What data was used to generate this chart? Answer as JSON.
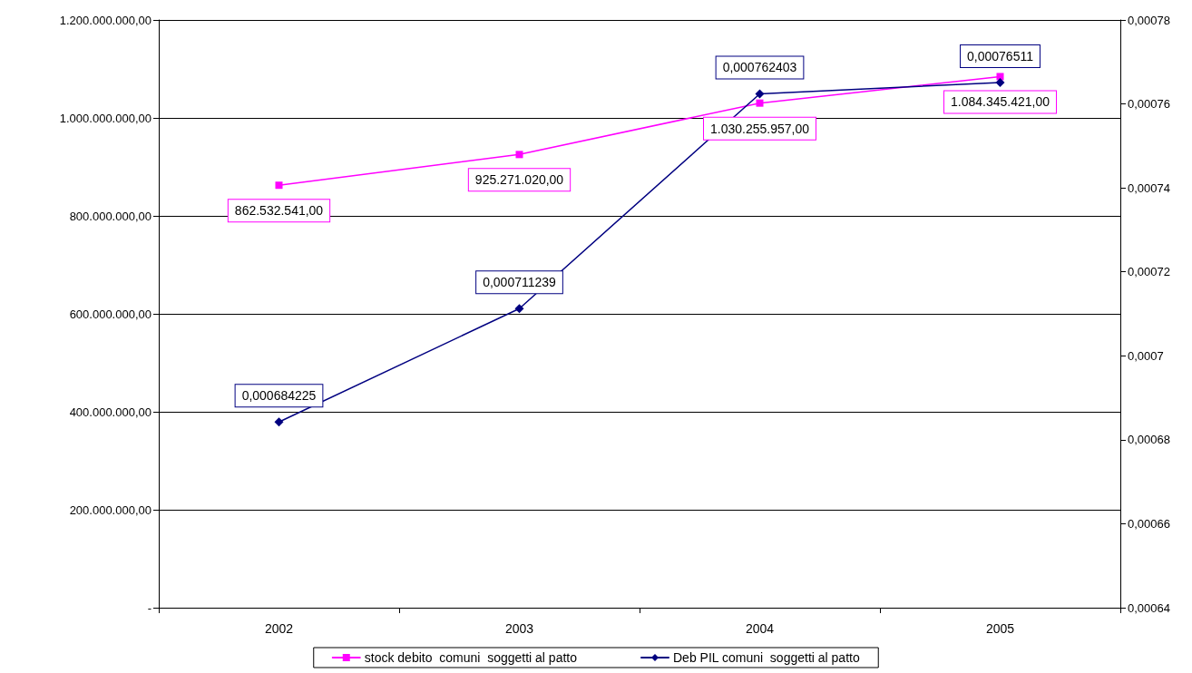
{
  "chart_data": {
    "type": "line",
    "categories": [
      "2002",
      "2003",
      "2004",
      "2005"
    ],
    "series": [
      {
        "name": "stock debito  comuni  soggetti al patto",
        "color": "#ff00ff",
        "marker": "square",
        "values": [
          862532541,
          925271020,
          1030255957,
          1084345421
        ],
        "value_labels": [
          "862.532.541,00",
          "925.271.020,00",
          "1.030.255.957,00",
          "1.084.345.421,00"
        ]
      },
      {
        "name": "Deb PIL comuni  soggetti al patto",
        "color": "#000080",
        "marker": "diamond",
        "axis": "y2",
        "values": [
          0.000684225,
          0.000711239,
          0.000762403,
          0.00076511
        ],
        "value_labels": [
          "0,000684225",
          "0,000711239",
          "0,000762403",
          "0,00076511"
        ]
      }
    ],
    "ylim": [
      0,
      1200000000
    ],
    "yticks": [
      {
        "value": 0,
        "label": "-"
      },
      {
        "value": 200000000,
        "label": "200.000.000,00"
      },
      {
        "value": 400000000,
        "label": "400.000.000,00"
      },
      {
        "value": 600000000,
        "label": "600.000.000,00"
      },
      {
        "value": 800000000,
        "label": "800.000.000,00"
      },
      {
        "value": 1000000000,
        "label": "1.000.000.000,00"
      },
      {
        "value": 1200000000,
        "label": "1.200.000.000,00"
      }
    ],
    "y2lim": [
      0.00064,
      0.00078
    ],
    "y2ticks": [
      {
        "value": 0.00064,
        "label": "0,00064"
      },
      {
        "value": 0.00066,
        "label": "0,00066"
      },
      {
        "value": 0.00068,
        "label": "0,00068"
      },
      {
        "value": 0.0007,
        "label": "0,0007"
      },
      {
        "value": 0.00072,
        "label": "0,00072"
      },
      {
        "value": 0.00074,
        "label": "0,00074"
      },
      {
        "value": 0.00076,
        "label": "0,00076"
      },
      {
        "value": 0.00078,
        "label": "0,00078"
      }
    ],
    "grid": "y",
    "legend": "bottom",
    "line_style": "solid"
  }
}
